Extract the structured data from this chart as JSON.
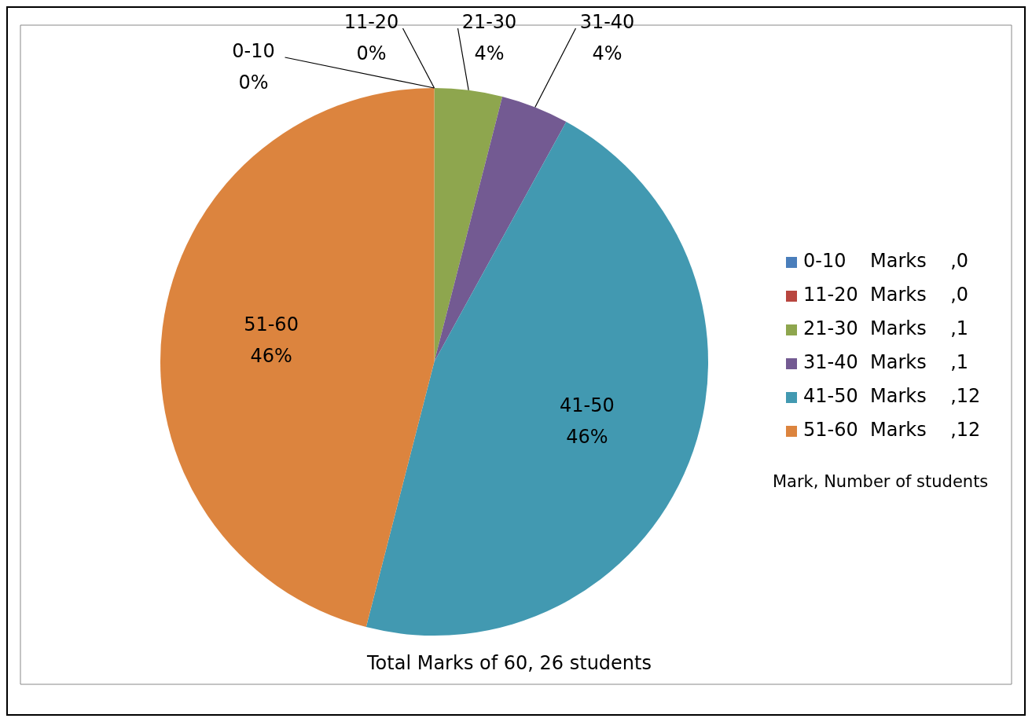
{
  "chart_data": {
    "type": "pie",
    "categories": [
      "0-10    Marks    ,0",
      "11-20  Marks    ,0",
      "21-30  Marks    ,1",
      "31-40  Marks    ,1",
      "41-50  Marks    ,12",
      "51-60  Marks    ,12"
    ],
    "values": [
      0,
      0,
      4,
      4,
      46,
      46
    ],
    "colors": [
      "#4a7ebb",
      "#b8463f",
      "#8ea64e",
      "#735a92",
      "#4299b1",
      "#dc843e"
    ],
    "value_labels": [
      "0-10\n0%",
      "11-20\n0%",
      "21-30\n4%",
      "31-40\n4%",
      "41-50\n46%",
      "51-60\n46%"
    ],
    "legend": "right",
    "legend_title": "Mark, Number of students",
    "annotations": [
      "Total Marks of 60, 26 students"
    ]
  }
}
